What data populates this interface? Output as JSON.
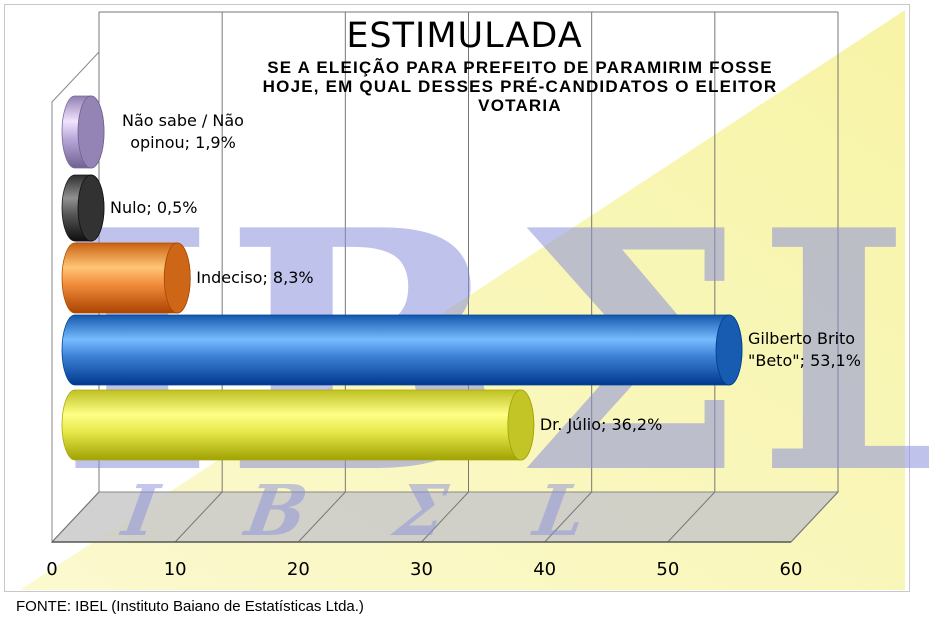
{
  "chart_data": {
    "type": "bar",
    "orientation": "horizontal",
    "style": "3d-cylinder",
    "title": "ESTIMULADA",
    "subtitle_lines": [
      "SE A ELEIÇÃO PARA PREFEITO DE PARAMIRIM FOSSE",
      "HOJE, EM QUAL DESSES PRÉ-CANDIDATOS O ELEITOR",
      "VOTARIA"
    ],
    "xlim": [
      0,
      60
    ],
    "xticks": [
      0,
      10,
      20,
      30,
      40,
      50,
      60
    ],
    "grid": true,
    "watermark": "IBEL",
    "bars": [
      {
        "label_lines": [
          "Dr. Júlio; 36,2%"
        ],
        "value": 36.2,
        "color": "#e6e84a"
      },
      {
        "label_lines": [
          "Gilberto Brito",
          "\"Beto\"; 53,1%"
        ],
        "value": 53.1,
        "color": "#3b7fd4"
      },
      {
        "label_lines": [
          "Indeciso; 8,3%"
        ],
        "value": 8.3,
        "color": "#f08a3a"
      },
      {
        "label_lines": [
          "Nulo; 0,5%"
        ],
        "value": 0.5,
        "color": "#555555"
      },
      {
        "label_lines": [
          "Não sabe / Não",
          "opinou; 1,9%"
        ],
        "value": 1.9,
        "color": "#b7a7d8"
      }
    ]
  },
  "source_note": "FONTE: IBEL (Instituto Baiano de Estatísticas Ltda.)"
}
